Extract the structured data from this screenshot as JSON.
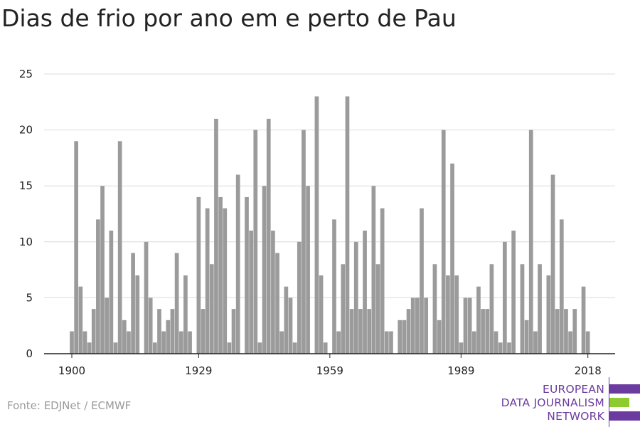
{
  "title": "Dias de frio por ano em e perto de Pau",
  "source": "Fonte: EDJNet / ECMWF",
  "logo": {
    "lines": [
      "EUROPEAN",
      "DATA JOURNALISM",
      "NETWORK"
    ],
    "colors": {
      "purple": "#6b3ba0",
      "green": "#8ecb2f"
    }
  },
  "colors": {
    "bar": "#9b9b9b",
    "grid": "#dcdcdc",
    "axis": "#222222"
  },
  "chart_data": {
    "type": "bar",
    "x_start": 1900,
    "x_end": 2019,
    "x_ticks": [
      1900,
      1929,
      1959,
      1989,
      2018
    ],
    "y_ticks": [
      0,
      5,
      10,
      15,
      20,
      25
    ],
    "ylim": [
      0,
      25
    ],
    "grid": true,
    "values": [
      2,
      19,
      6,
      2,
      1,
      4,
      12,
      15,
      5,
      11,
      1,
      19,
      3,
      2,
      9,
      7,
      null,
      10,
      5,
      1,
      4,
      2,
      3,
      4,
      9,
      2,
      7,
      2,
      null,
      14,
      4,
      13,
      8,
      21,
      14,
      13,
      1,
      4,
      16,
      null,
      14,
      11,
      20,
      1,
      15,
      21,
      11,
      9,
      2,
      6,
      5,
      1,
      10,
      20,
      15,
      null,
      23,
      7,
      1,
      null,
      12,
      2,
      8,
      23,
      4,
      10,
      4,
      11,
      4,
      15,
      8,
      13,
      2,
      2,
      null,
      3,
      3,
      4,
      5,
      5,
      13,
      5,
      null,
      8,
      3,
      20,
      7,
      17,
      7,
      1,
      5,
      5,
      2,
      6,
      4,
      4,
      8,
      2,
      1,
      10,
      1,
      11,
      null,
      8,
      3,
      20,
      2,
      8,
      null,
      7,
      16,
      4,
      12,
      4,
      2,
      4,
      null,
      6,
      2,
      null
    ]
  }
}
